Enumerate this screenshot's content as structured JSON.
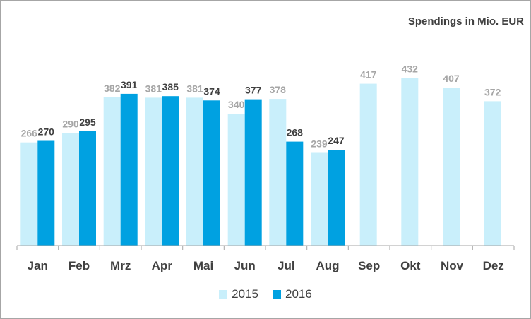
{
  "chart_data": {
    "type": "bar",
    "title": "Spendings in Mio. EUR",
    "categories": [
      "Jan",
      "Feb",
      "Mrz",
      "Apr",
      "Mai",
      "Jun",
      "Jul",
      "Aug",
      "Sep",
      "Okt",
      "Nov",
      "Dez"
    ],
    "series": [
      {
        "name": "2015",
        "color": "#c9effb",
        "label_color": "#a6a6a6",
        "values": [
          266,
          290,
          382,
          381,
          381,
          340,
          378,
          239,
          417,
          432,
          407,
          372
        ]
      },
      {
        "name": "2016",
        "color": "#00a1e1",
        "label_color": "#404040",
        "values": [
          270,
          295,
          391,
          385,
          374,
          377,
          268,
          247,
          null,
          null,
          null,
          null
        ]
      }
    ],
    "ylim": [
      0,
      600
    ],
    "grid": false,
    "legend_position": "bottom"
  }
}
